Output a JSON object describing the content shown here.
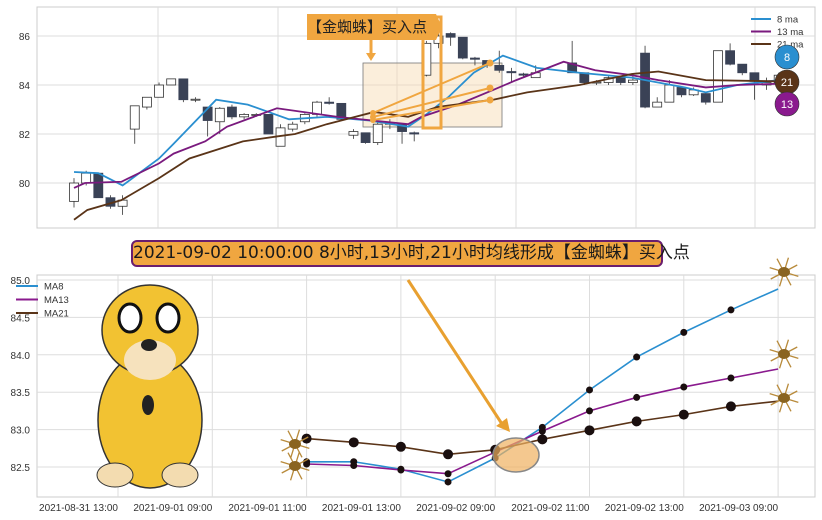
{
  "chart_data": [
    {
      "type": "candlestick",
      "yticks": [
        80,
        82,
        84,
        86
      ],
      "ylim": [
        78.1,
        87.2
      ],
      "grid": true,
      "legend": {
        "placement": "top-right",
        "entries": [
          "8 ma",
          "13 ma",
          "21 ma"
        ]
      },
      "candles_columns": [
        "index",
        "open",
        "high",
        "low",
        "close"
      ],
      "candles": [
        [
          0,
          79.25,
          80.2,
          79.0,
          80.0
        ],
        [
          1,
          80.0,
          80.5,
          79.9,
          80.4
        ],
        [
          2,
          80.4,
          80.4,
          79.4,
          79.4
        ],
        [
          3,
          79.4,
          79.5,
          78.95,
          79.05
        ],
        [
          4,
          79.05,
          79.5,
          78.7,
          79.3
        ],
        [
          5,
          82.2,
          83.15,
          81.6,
          83.15
        ],
        [
          6,
          83.1,
          83.5,
          83.0,
          83.5
        ],
        [
          7,
          83.5,
          84.1,
          83.5,
          84.0
        ],
        [
          8,
          84.0,
          84.25,
          84.0,
          84.25
        ],
        [
          9,
          84.25,
          84.25,
          83.3,
          83.4
        ],
        [
          10,
          83.4,
          83.5,
          83.3,
          83.42
        ],
        [
          11,
          83.1,
          83.1,
          81.9,
          82.55
        ],
        [
          12,
          82.5,
          83.1,
          82.0,
          83.05
        ],
        [
          13,
          83.1,
          83.2,
          82.6,
          82.7
        ],
        [
          14,
          82.7,
          82.85,
          82.6,
          82.8
        ],
        [
          15,
          82.8,
          82.85,
          82.7,
          82.8
        ],
        [
          16,
          82.8,
          82.8,
          82.0,
          82.0
        ],
        [
          17,
          81.5,
          82.4,
          81.5,
          82.25
        ],
        [
          18,
          82.2,
          82.5,
          82.1,
          82.4
        ],
        [
          19,
          82.5,
          82.85,
          82.4,
          82.8
        ],
        [
          20,
          82.8,
          83.35,
          82.7,
          83.3
        ],
        [
          21,
          83.3,
          83.5,
          83.2,
          83.25
        ],
        [
          22,
          83.25,
          83.25,
          82.55,
          82.6
        ],
        [
          23,
          81.95,
          82.2,
          81.8,
          82.1
        ],
        [
          24,
          82.05,
          82.05,
          81.6,
          81.65
        ],
        [
          25,
          81.65,
          82.5,
          81.55,
          82.4
        ],
        [
          26,
          82.4,
          82.6,
          82.2,
          82.45
        ],
        [
          27,
          82.4,
          82.45,
          81.6,
          82.1
        ],
        [
          28,
          82.05,
          82.1,
          81.7,
          82.0
        ],
        [
          29,
          84.4,
          85.8,
          84.35,
          85.7
        ],
        [
          30,
          85.7,
          86.2,
          85.5,
          86.0
        ],
        [
          31,
          86.1,
          86.15,
          85.6,
          85.95
        ],
        [
          32,
          85.95,
          85.95,
          85.05,
          85.1
        ],
        [
          33,
          85.1,
          85.15,
          84.8,
          85.05
        ],
        [
          34,
          85.0,
          85.0,
          84.7,
          84.8
        ],
        [
          35,
          84.8,
          85.4,
          84.5,
          84.6
        ],
        [
          36,
          84.55,
          84.7,
          84.1,
          84.5
        ],
        [
          37,
          84.45,
          84.5,
          84.3,
          84.4
        ],
        [
          38,
          84.3,
          84.8,
          84.3,
          84.5
        ],
        [
          41,
          84.9,
          85.8,
          84.5,
          84.5
        ],
        [
          42,
          84.5,
          84.5,
          84.0,
          84.1
        ],
        [
          43,
          84.1,
          84.2,
          84.0,
          84.12
        ],
        [
          44,
          84.1,
          84.35,
          84.0,
          84.3
        ],
        [
          45,
          84.3,
          84.3,
          84.0,
          84.1
        ],
        [
          46,
          84.1,
          84.4,
          84.0,
          84.2
        ],
        [
          47,
          85.3,
          85.6,
          83.05,
          83.1
        ],
        [
          48,
          83.1,
          83.5,
          83.1,
          83.3
        ],
        [
          49,
          83.3,
          84.2,
          83.3,
          84.0
        ],
        [
          50,
          83.9,
          83.95,
          83.5,
          83.6
        ],
        [
          51,
          83.6,
          83.9,
          83.55,
          83.8
        ],
        [
          52,
          83.65,
          83.7,
          83.2,
          83.3
        ],
        [
          53,
          83.3,
          85.4,
          83.3,
          85.4
        ],
        [
          54,
          85.4,
          85.7,
          84.8,
          84.85
        ],
        [
          55,
          84.85,
          84.85,
          84.4,
          84.5
        ],
        [
          56,
          84.5,
          84.5,
          83.4,
          84.15
        ],
        [
          57,
          84.0,
          84.3,
          83.8,
          84.1
        ],
        [
          58,
          84.1,
          84.5,
          84.0,
          84.4
        ]
      ],
      "series": [
        {
          "name": "8 ma",
          "color": "#2a8fd0",
          "points": [
            [
              0,
              80.45
            ],
            [
              2,
              80.4
            ],
            [
              4,
              79.9
            ],
            [
              7,
              81.0
            ],
            [
              8.2,
              81.6
            ],
            [
              11.7,
              83.4
            ],
            [
              14.3,
              83.2
            ],
            [
              17.7,
              82.6
            ],
            [
              20.8,
              82.7
            ],
            [
              24.3,
              82.55
            ],
            [
              27.5,
              82.3
            ],
            [
              29,
              82.8
            ],
            [
              30.8,
              83.5
            ],
            [
              32.9,
              84.5
            ],
            [
              35.3,
              85.2
            ],
            [
              38.1,
              84.7
            ],
            [
              41.6,
              84.5
            ],
            [
              45.9,
              84.3
            ],
            [
              50.3,
              83.9
            ],
            [
              52,
              83.7
            ],
            [
              54.6,
              84.0
            ],
            [
              58,
              84.2
            ]
          ]
        },
        {
          "name": "13 ma",
          "color": "#7a1a7e",
          "points": [
            [
              0,
              79.8
            ],
            [
              0.9,
              80.0
            ],
            [
              3.9,
              80.05
            ],
            [
              7,
              80.8
            ],
            [
              8.2,
              81.2
            ],
            [
              10.8,
              81.7
            ],
            [
              12.6,
              82.3
            ],
            [
              16.7,
              83.05
            ],
            [
              21.7,
              82.7
            ],
            [
              27.5,
              82.4
            ],
            [
              28.6,
              82.7
            ],
            [
              31.6,
              83.2
            ],
            [
              34.5,
              83.8
            ],
            [
              36.4,
              84.2
            ],
            [
              40.3,
              84.95
            ],
            [
              42.9,
              84.6
            ],
            [
              45.9,
              84.4
            ],
            [
              48.1,
              84.2
            ],
            [
              52,
              83.9
            ],
            [
              54.6,
              84.0
            ],
            [
              58,
              84.05
            ]
          ]
        },
        {
          "name": "21 ma",
          "color": "#5a3418",
          "points": [
            [
              0,
              78.5
            ],
            [
              1.1,
              78.9
            ],
            [
              3.9,
              79.3
            ],
            [
              7,
              80.2
            ],
            [
              9.5,
              81.0
            ],
            [
              13.9,
              81.7
            ],
            [
              16.7,
              81.9
            ],
            [
              18.2,
              82.0
            ],
            [
              20.8,
              82.4
            ],
            [
              24.7,
              82.9
            ],
            [
              27.5,
              82.7
            ],
            [
              29.9,
              83.1
            ],
            [
              34.5,
              83.4
            ],
            [
              37.3,
              83.7
            ],
            [
              41.6,
              84.0
            ],
            [
              45.9,
              84.45
            ],
            [
              48.1,
              84.55
            ],
            [
              52,
              84.2
            ],
            [
              58,
              84.15
            ]
          ]
        }
      ],
      "annotation": "【金蜘蛛】买入点",
      "badges": [
        {
          "label": "8",
          "color": "#2a8fd0"
        },
        {
          "label": "21",
          "color": "#5a3418"
        },
        {
          "label": "13",
          "color": "#8a1a8e"
        }
      ]
    },
    {
      "type": "line",
      "title": "2021-09-02 10:00:00 8小时,13小时,21小时均线形成【金蜘蛛】买入点",
      "xticks": [
        "2021-08-31 13:00",
        "2021-09-01 09:00",
        "2021-09-01 11:00",
        "2021-09-01 13:00",
        "2021-09-02 09:00",
        "2021-09-02 11:00",
        "2021-09-02 13:00",
        "2021-09-03 09:00"
      ],
      "yticks": [
        "82.5",
        "83.0",
        "83.5",
        "84.0",
        "84.5",
        "85.0"
      ],
      "ylim": [
        82.15,
        85.07
      ],
      "grid": true,
      "legend": {
        "placement": "top-left",
        "entries": [
          "MA8",
          "MA13",
          "MA21"
        ]
      },
      "x_start_tick": "2021-09-01 11:00",
      "points_per_tick": 2,
      "series": [
        {
          "name": "MA8",
          "color": "#2a8fd0",
          "values": [
            82.57,
            82.57,
            82.47,
            82.3,
            82.62,
            83.03,
            83.53,
            83.97,
            84.3,
            84.6,
            84.88
          ]
        },
        {
          "name": "MA13",
          "color": "#8a1a8e",
          "values": [
            82.54,
            82.52,
            82.46,
            82.41,
            82.7,
            82.98,
            83.25,
            83.43,
            83.57,
            83.69,
            83.81
          ]
        },
        {
          "name": "MA21",
          "color": "#5a3418",
          "values": [
            82.88,
            82.83,
            82.77,
            82.67,
            82.73,
            82.87,
            82.99,
            83.11,
            83.2,
            83.31,
            83.38
          ]
        }
      ]
    }
  ]
}
